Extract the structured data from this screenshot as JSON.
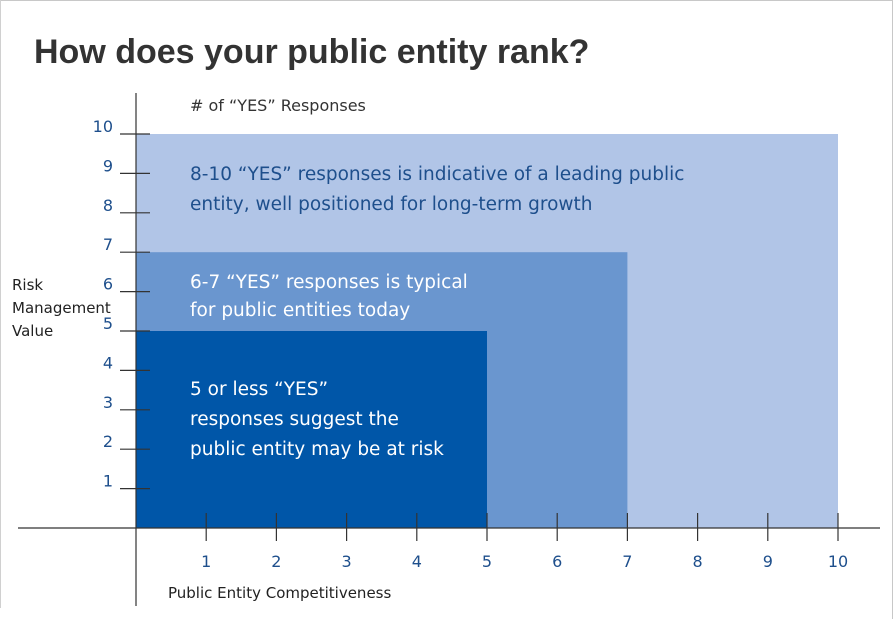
{
  "chart_data": {
    "type": "area",
    "title": "How does your public entity rank?",
    "top_label": "# of “YES” Responses",
    "xlabel": "Public Entity Competitiveness",
    "ylabel": [
      "Risk",
      "Management",
      "Value"
    ],
    "xlim": [
      0,
      11
    ],
    "ylim": [
      0,
      10
    ],
    "x_ticks": [
      "1",
      "2",
      "3",
      "4",
      "5",
      "6",
      "7",
      "8",
      "9",
      "10"
    ],
    "y_ticks": [
      "1",
      "2",
      "3",
      "4",
      "5",
      "6",
      "7",
      "8",
      "9",
      "10"
    ],
    "grid": false,
    "regions": [
      {
        "x": [
          0,
          10
        ],
        "y": [
          0,
          10
        ],
        "color": "#b1c5e7",
        "text_color": "#1e4f8c",
        "label": [
          "8-10 “YES” responses is indicative of a leading public",
          "entity, well positioned for long-term growth"
        ]
      },
      {
        "x": [
          0,
          7
        ],
        "y": [
          0,
          7
        ],
        "color": "#6a96cf",
        "text_color": "#ffffff",
        "label": [
          "6-7 “YES” responses is typical",
          "for public entities today"
        ]
      },
      {
        "x": [
          0,
          5
        ],
        "y": [
          0,
          5
        ],
        "color": "#0056a8",
        "text_color": "#ffffff",
        "label": [
          "5 or less “YES”",
          "responses suggest the",
          "public entity may be at risk"
        ]
      }
    ]
  }
}
